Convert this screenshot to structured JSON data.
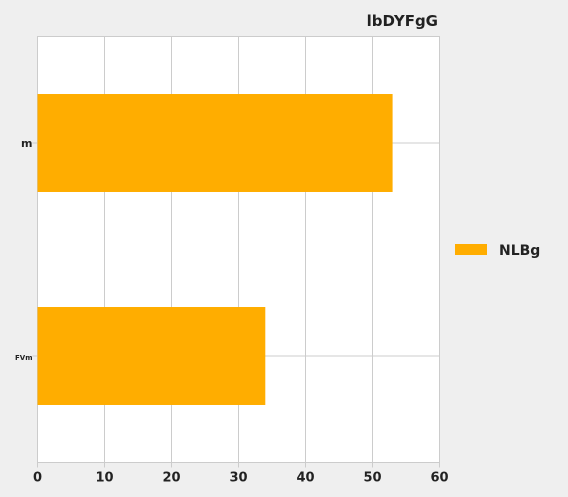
{
  "chart_data": {
    "type": "bar",
    "orientation": "horizontal",
    "title": "lbDYFgG",
    "categories": [
      "m",
      "FVm"
    ],
    "series": [
      {
        "name": "NLBg",
        "values": [
          53,
          34
        ],
        "color": "#ffad00"
      }
    ],
    "xlim": [
      0,
      60
    ],
    "xticks": [
      0,
      10,
      20,
      30,
      40,
      50,
      60
    ],
    "grid": true,
    "legend_position": "right"
  }
}
